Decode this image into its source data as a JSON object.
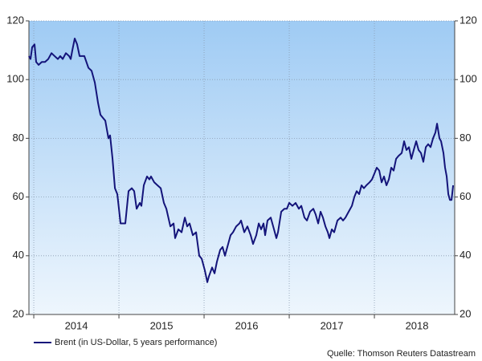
{
  "chart_data": {
    "type": "line",
    "source": "Quelle: Thomson Reuters Datastream",
    "xlim": [
      2013.943,
      2018.943
    ],
    "xticks": [
      {
        "value": 2014,
        "label": "2014"
      },
      {
        "value": 2015,
        "label": "2015"
      },
      {
        "value": 2016,
        "label": "2016"
      },
      {
        "value": 2017,
        "label": "2017"
      },
      {
        "value": 2018,
        "label": "2018"
      }
    ],
    "ylim": [
      20,
      120
    ],
    "yticks": [
      20,
      40,
      60,
      80,
      100,
      120
    ],
    "grid": true,
    "x": [
      2013.943,
      2013.962,
      2013.981,
      2014.009,
      2014.028,
      2014.057,
      2014.094,
      2014.132,
      2014.17,
      2014.208,
      2014.245,
      2014.283,
      2014.311,
      2014.34,
      2014.377,
      2014.415,
      2014.434,
      2014.453,
      2014.481,
      2014.509,
      2014.538,
      2014.594,
      2014.642,
      2014.679,
      2014.717,
      2014.755,
      2014.783,
      2014.811,
      2014.84,
      2014.877,
      2014.896,
      2014.925,
      2014.953,
      2014.981,
      2015.019,
      2015.075,
      2015.113,
      2015.151,
      2015.179,
      2015.208,
      2015.245,
      2015.264,
      2015.292,
      2015.33,
      2015.358,
      2015.377,
      2015.415,
      2015.453,
      2015.491,
      2015.528,
      2015.557,
      2015.604,
      2015.642,
      2015.66,
      2015.698,
      2015.736,
      2015.774,
      2015.802,
      2015.83,
      2015.868,
      2015.906,
      2015.943,
      2015.972,
      2016.009,
      2016.038,
      2016.057,
      2016.094,
      2016.123,
      2016.151,
      2016.189,
      2016.217,
      2016.245,
      2016.283,
      2016.311,
      2016.34,
      2016.377,
      2016.415,
      2016.434,
      2016.472,
      2016.509,
      2016.547,
      2016.575,
      2016.613,
      2016.642,
      2016.67,
      2016.698,
      2016.717,
      2016.745,
      2016.783,
      2016.821,
      2016.849,
      2016.868,
      2016.906,
      2016.943,
      2016.972,
      2017.0,
      2017.038,
      2017.075,
      2017.113,
      2017.142,
      2017.179,
      2017.208,
      2017.245,
      2017.283,
      2017.311,
      2017.34,
      2017.368,
      2017.396,
      2017.425,
      2017.453,
      2017.472,
      2017.5,
      2017.528,
      2017.566,
      2017.604,
      2017.632,
      2017.66,
      2017.698,
      2017.736,
      2017.764,
      2017.792,
      2017.821,
      2017.849,
      2017.877,
      2017.906,
      2017.943,
      2017.972,
      2018.0,
      2018.028,
      2018.057,
      2018.085,
      2018.113,
      2018.142,
      2018.17,
      2018.198,
      2018.226,
      2018.255,
      2018.283,
      2018.321,
      2018.349,
      2018.377,
      2018.406,
      2018.434,
      2018.462,
      2018.491,
      2018.519,
      2018.547,
      2018.575,
      2018.604,
      2018.632,
      2018.66,
      2018.689,
      2018.717,
      2018.736,
      2018.764,
      2018.783,
      2018.811,
      2018.83,
      2018.849,
      2018.868,
      2018.887,
      2018.906,
      2018.925
    ],
    "series": [
      {
        "name": "Brent (in US-Dollar, 5 years performance)",
        "color": "#14147a",
        "values": [
          108,
          107,
          111,
          112,
          106,
          105,
          106,
          106,
          107,
          109,
          108,
          107,
          108,
          107,
          109,
          108,
          107,
          110,
          114,
          112,
          108,
          108,
          104,
          103,
          99,
          92,
          88,
          87,
          86,
          80,
          81,
          73,
          63,
          61,
          51,
          51,
          62,
          63,
          62,
          56,
          58,
          57,
          64,
          67,
          66,
          67,
          65,
          64,
          63,
          58,
          56,
          50,
          51,
          46,
          49,
          48,
          53,
          50,
          51,
          47,
          48,
          40,
          39,
          35,
          31,
          33,
          36,
          34,
          38,
          42,
          43,
          40,
          44,
          47,
          48,
          50,
          51,
          52,
          48,
          50,
          47,
          44,
          47,
          51,
          49,
          51,
          47,
          52,
          53,
          49,
          46,
          48,
          55,
          56,
          56,
          58,
          57,
          58,
          56,
          57,
          53,
          52,
          55,
          56,
          54,
          51,
          55,
          53,
          50,
          48,
          46,
          49,
          48,
          52,
          53,
          52,
          53,
          55,
          57,
          60,
          62,
          61,
          64,
          63,
          64,
          65,
          66,
          68,
          70,
          69,
          65,
          67,
          64,
          66,
          70,
          69,
          73,
          74,
          75,
          79,
          76,
          77,
          73,
          76,
          79,
          76,
          75,
          72,
          77,
          78,
          77,
          80,
          82,
          85,
          80,
          79,
          75,
          70,
          67,
          61,
          59,
          59,
          64
        ]
      }
    ]
  }
}
